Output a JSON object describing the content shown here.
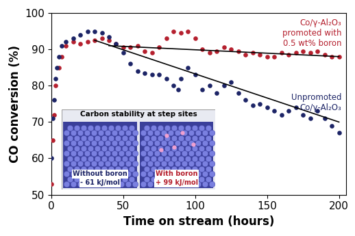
{
  "chart_data": {
    "type": "scatter",
    "x_label": "Time on stream (hours)",
    "y_label": "CO conversion (%)",
    "xlim": [
      0,
      205
    ],
    "xticks": [
      0,
      50,
      100,
      150,
      200
    ],
    "ylim": [
      50,
      100
    ],
    "yticks": [
      50,
      60,
      70,
      80,
      90,
      100
    ],
    "grid": false,
    "series": [
      {
        "name": "Co/γ-Al₂O₃\npromoted with\n0.5 wt% boron",
        "color": "#b5202e",
        "type": "scatter",
        "marker": "circle",
        "x": [
          0,
          1,
          2,
          3,
          5,
          7,
          10,
          15,
          20,
          25,
          30,
          35,
          40,
          45,
          50,
          55,
          60,
          65,
          70,
          75,
          80,
          85,
          90,
          95,
          100,
          105,
          110,
          115,
          120,
          125,
          130,
          135,
          140,
          145,
          150,
          155,
          160,
          165,
          170,
          175,
          180,
          185,
          190,
          195,
          200
        ],
        "values": [
          53,
          65,
          72,
          80,
          85,
          88,
          91,
          92,
          91.5,
          92,
          92.5,
          93,
          92.5,
          91.5,
          90.5,
          90.5,
          91,
          89.5,
          89,
          90.5,
          93,
          95,
          94.5,
          95,
          93,
          90,
          89,
          89.5,
          90.5,
          90,
          89.5,
          88.5,
          89,
          88.5,
          88,
          88,
          89,
          88.5,
          89,
          89.5,
          89,
          89.5,
          88.5,
          88,
          88
        ]
      },
      {
        "name": "Unpromoted\nCo/γ-Al₂O₃",
        "color": "#1c2466",
        "type": "scatter",
        "marker": "circle",
        "x": [
          0,
          1,
          2,
          3,
          4,
          5,
          7,
          10,
          15,
          20,
          25,
          30,
          35,
          40,
          45,
          50,
          55,
          60,
          65,
          70,
          75,
          80,
          85,
          88,
          90,
          95,
          100,
          105,
          110,
          115,
          120,
          125,
          130,
          135,
          140,
          145,
          150,
          155,
          160,
          165,
          170,
          175,
          180,
          185,
          190,
          195,
          200
        ],
        "values": [
          60,
          71,
          76,
          82,
          85,
          88,
          91,
          92,
          93,
          94,
          95,
          95,
          94.5,
          93.5,
          91.5,
          89,
          86,
          84,
          83.5,
          83,
          83,
          82,
          80,
          79,
          82,
          85,
          83,
          79,
          80,
          78,
          80,
          81,
          78,
          76,
          74.5,
          75,
          74,
          73,
          72,
          73,
          74,
          72,
          71,
          73,
          71,
          69,
          67
        ]
      },
      {
        "color": "#000000",
        "type": "line",
        "line_style": "solid",
        "x": [
          40,
          200
        ],
        "values": [
          91,
          88
        ]
      },
      {
        "color": "#000000",
        "type": "line",
        "line_style": "solid",
        "x": [
          30,
          200
        ],
        "values": [
          92.5,
          70
        ]
      }
    ],
    "inset": {
      "title": "Carbon stability at step sites",
      "panels": [
        {
          "label": "Without boron",
          "energy": "- 61 kJ/mol",
          "color": "#1c2466"
        },
        {
          "label": "With boron",
          "energy": "+ 99 kJ/mol",
          "color": "#b5202e"
        }
      ]
    }
  }
}
